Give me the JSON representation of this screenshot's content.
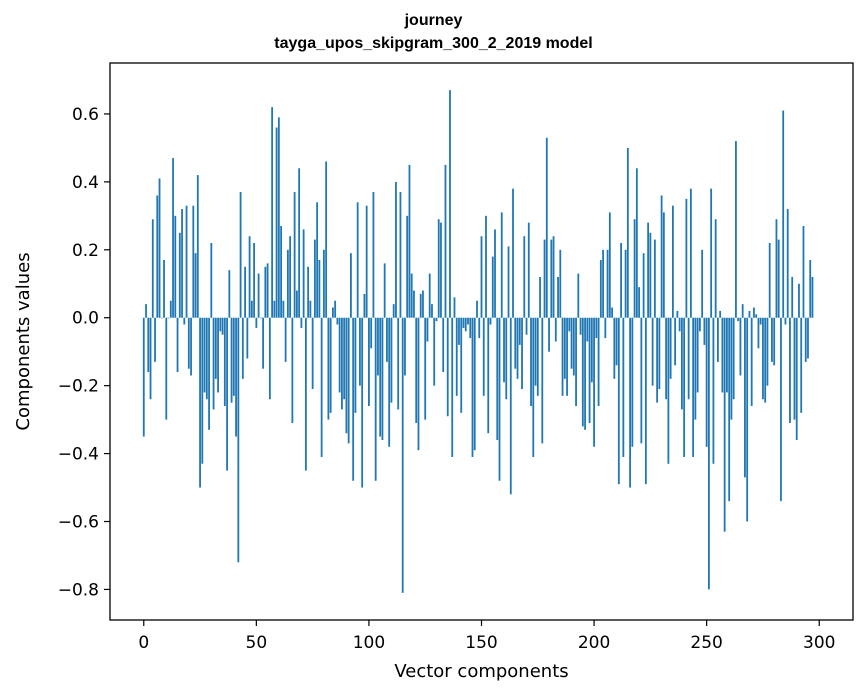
{
  "chart_data": {
    "type": "bar",
    "title_line1": "journey",
    "title_line2": "tayga_upos_skipgram_300_2_2019 model",
    "xlabel": "Vector components",
    "ylabel": "Components values",
    "xlim": [
      -15,
      315
    ],
    "ylim": [
      -0.89,
      0.75
    ],
    "xticks": [
      0,
      50,
      100,
      150,
      200,
      250,
      300
    ],
    "xtick_labels": [
      "0",
      "50",
      "100",
      "150",
      "200",
      "250",
      "300"
    ],
    "yticks": [
      -0.8,
      -0.6,
      -0.4,
      -0.2,
      0.0,
      0.2,
      0.4,
      0.6
    ],
    "ytick_labels": [
      "−0.8",
      "−0.6",
      "−0.4",
      "−0.2",
      "0.0",
      "0.2",
      "0.4",
      "0.6"
    ],
    "bar_color": "#1f77b4",
    "values": [
      -0.35,
      0.04,
      -0.16,
      -0.24,
      0.29,
      -0.13,
      0.36,
      0.41,
      0.0,
      0.17,
      -0.3,
      0.0,
      0.05,
      0.47,
      0.3,
      -0.16,
      0.25,
      0.32,
      -0.02,
      0.33,
      -0.15,
      -0.17,
      0.33,
      0.19,
      0.42,
      -0.5,
      -0.43,
      -0.22,
      -0.24,
      -0.33,
      0.22,
      -0.27,
      -0.18,
      -0.22,
      -0.04,
      -0.05,
      -0.26,
      -0.45,
      0.14,
      -0.25,
      -0.23,
      -0.35,
      -0.72,
      0.37,
      -0.18,
      0.15,
      -0.12,
      0.24,
      0.05,
      0.22,
      -0.03,
      0.13,
      0.0,
      -0.15,
      0.15,
      0.16,
      -0.24,
      0.62,
      0.05,
      0.56,
      0.59,
      0.27,
      0.05,
      -0.13,
      0.2,
      0.24,
      -0.31,
      0.37,
      0.08,
      0.44,
      -0.03,
      0.26,
      -0.45,
      0.15,
      0.05,
      -0.21,
      0.23,
      0.34,
      0.17,
      -0.41,
      0.2,
      0.46,
      -0.3,
      -0.28,
      0.03,
      0.05,
      -0.02,
      -0.22,
      -0.27,
      -0.24,
      -0.34,
      -0.37,
      0.19,
      -0.48,
      -0.28,
      0.34,
      -0.2,
      -0.5,
      0.07,
      0.33,
      -0.26,
      -0.09,
      0.37,
      -0.48,
      -0.17,
      -0.35,
      -0.36,
      0.16,
      -0.13,
      -0.38,
      -0.25,
      0.04,
      0.4,
      -0.27,
      0.37,
      -0.81,
      -0.17,
      0.3,
      0.45,
      0.13,
      0.08,
      -0.31,
      -0.39,
      0.07,
      0.08,
      -0.3,
      -0.07,
      0.13,
      0.04,
      -0.2,
      -0.01,
      0.29,
      0.28,
      -0.16,
      0.45,
      -0.29,
      0.67,
      -0.41,
      0.06,
      -0.23,
      -0.08,
      -0.28,
      -0.03,
      -0.04,
      -0.02,
      -0.06,
      -0.41,
      -0.39,
      0.05,
      -0.06,
      0.24,
      -0.23,
      0.3,
      -0.34,
      -0.02,
      0.18,
      0.26,
      -0.36,
      -0.48,
      0.31,
      -0.19,
      -0.24,
      0.21,
      -0.52,
      0.38,
      -0.15,
      -0.18,
      -0.08,
      -0.21,
      0.24,
      -0.05,
      0.28,
      -0.26,
      -0.41,
      -0.2,
      -0.23,
      0.12,
      -0.37,
      0.23,
      0.53,
      -0.1,
      0.23,
      0.24,
      -0.07,
      0.12,
      0.2,
      -0.23,
      -0.18,
      -0.23,
      -0.04,
      -0.15,
      -0.17,
      -0.26,
      0.13,
      -0.05,
      -0.32,
      -0.33,
      -0.07,
      -0.31,
      -0.19,
      -0.38,
      -0.06,
      -0.26,
      0.17,
      0.2,
      -0.06,
      0.2,
      0.31,
      0.03,
      -0.18,
      -0.14,
      -0.49,
      0.22,
      -0.41,
      0.2,
      0.5,
      -0.5,
      -0.38,
      0.29,
      0.44,
      0.09,
      -0.37,
      0.19,
      -0.49,
      0.28,
      0.25,
      -0.2,
      0.23,
      -0.25,
      -0.21,
      0.36,
      0.31,
      -0.24,
      -0.43,
      -0.18,
      0.33,
      -0.14,
      0.02,
      -0.04,
      -0.27,
      -0.41,
      0.35,
      -0.24,
      0.38,
      -0.41,
      -0.3,
      -0.22,
      -0.04,
      0.2,
      -0.08,
      -0.38,
      -0.8,
      0.38,
      -0.43,
      0.29,
      -0.13,
      0.02,
      -0.22,
      -0.63,
      -0.22,
      -0.54,
      -0.3,
      -0.24,
      0.52,
      -0.01,
      -0.17,
      0.04,
      -0.47,
      -0.6,
      0.02,
      -0.26,
      0.03,
      0.01,
      -0.09,
      -0.02,
      -0.24,
      -0.25,
      -0.2,
      0.22,
      -0.13,
      -0.14,
      0.29,
      0.23,
      -0.54,
      0.61,
      -0.02,
      0.32,
      -0.31,
      0.12,
      -0.3,
      -0.36,
      0.1,
      -0.28,
      0.27,
      -0.13,
      -0.12,
      0.17,
      0.12
    ]
  }
}
